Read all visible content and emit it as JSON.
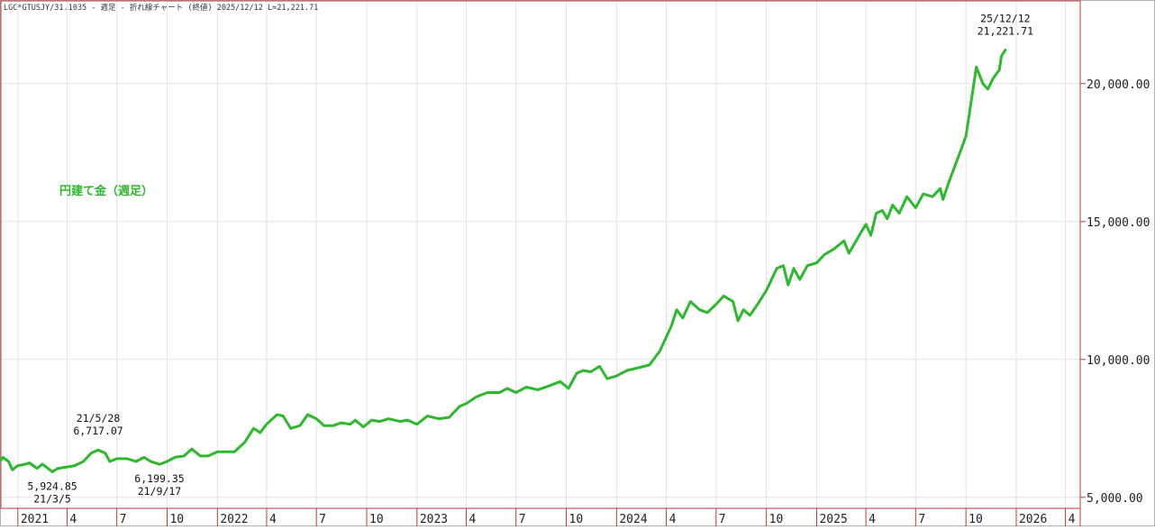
{
  "header": {
    "text": "LGC*GTUSJY/31.1035 - 週足 - 折れ線チャート (終値) 2025/12/12 L=21,221.71"
  },
  "chart_data": {
    "type": "line",
    "title": "円建て金（週足）",
    "color": "#2db82d",
    "ylim": [
      4600,
      23000
    ],
    "xlim": [
      "2020-12-01",
      "2026-04-28"
    ],
    "grid": true,
    "y_ticks": [
      {
        "value": 5000,
        "label": "5,000.00"
      },
      {
        "value": 10000,
        "label": "10,000.00"
      },
      {
        "value": 15000,
        "label": "15,000.00"
      },
      {
        "value": 20000,
        "label": "20,000.00"
      }
    ],
    "x_ticks": [
      {
        "date": "2021-01-01",
        "label": "2021"
      },
      {
        "date": "2021-04-01",
        "label": "4"
      },
      {
        "date": "2021-07-01",
        "label": "7"
      },
      {
        "date": "2021-10-01",
        "label": "10"
      },
      {
        "date": "2022-01-01",
        "label": "2022"
      },
      {
        "date": "2022-04-01",
        "label": "4"
      },
      {
        "date": "2022-07-01",
        "label": "7"
      },
      {
        "date": "2022-10-01",
        "label": "10"
      },
      {
        "date": "2023-01-01",
        "label": "2023"
      },
      {
        "date": "2023-04-01",
        "label": "4"
      },
      {
        "date": "2023-07-01",
        "label": "7"
      },
      {
        "date": "2023-10-01",
        "label": "10"
      },
      {
        "date": "2024-01-01",
        "label": "2024"
      },
      {
        "date": "2024-04-01",
        "label": "4"
      },
      {
        "date": "2024-07-01",
        "label": "7"
      },
      {
        "date": "2024-10-01",
        "label": "10"
      },
      {
        "date": "2025-01-01",
        "label": "2025"
      },
      {
        "date": "2025-04-01",
        "label": "4"
      },
      {
        "date": "2025-07-01",
        "label": "7"
      },
      {
        "date": "2025-10-01",
        "label": "10"
      },
      {
        "date": "2026-01-01",
        "label": "2026"
      },
      {
        "date": "2026-04-01",
        "label": "4"
      }
    ],
    "series": [
      {
        "points": [
          [
            "2020-12-01",
            6350
          ],
          [
            "2020-12-05",
            6450
          ],
          [
            "2020-12-15",
            6300
          ],
          [
            "2020-12-22",
            6000
          ],
          [
            "2021-01-01",
            6150
          ],
          [
            "2021-01-15",
            6200
          ],
          [
            "2021-01-22",
            6250
          ],
          [
            "2021-02-05",
            6050
          ],
          [
            "2021-02-15",
            6200
          ],
          [
            "2021-02-25",
            6050
          ],
          [
            "2021-03-05",
            5925
          ],
          [
            "2021-03-15",
            6050
          ],
          [
            "2021-04-01",
            6100
          ],
          [
            "2021-04-15",
            6150
          ],
          [
            "2021-05-01",
            6300
          ],
          [
            "2021-05-15",
            6600
          ],
          [
            "2021-05-28",
            6717
          ],
          [
            "2021-06-10",
            6600
          ],
          [
            "2021-06-18",
            6300
          ],
          [
            "2021-07-01",
            6400
          ],
          [
            "2021-07-20",
            6400
          ],
          [
            "2021-08-05",
            6300
          ],
          [
            "2021-08-20",
            6450
          ],
          [
            "2021-09-01",
            6300
          ],
          [
            "2021-09-17",
            6199
          ],
          [
            "2021-10-01",
            6300
          ],
          [
            "2021-10-15",
            6450
          ],
          [
            "2021-11-01",
            6500
          ],
          [
            "2021-11-15",
            6750
          ],
          [
            "2021-12-01",
            6500
          ],
          [
            "2021-12-15",
            6500
          ],
          [
            "2022-01-01",
            6650
          ],
          [
            "2022-02-01",
            6650
          ],
          [
            "2022-02-20",
            7000
          ],
          [
            "2022-03-08",
            7500
          ],
          [
            "2022-03-20",
            7350
          ],
          [
            "2022-04-01",
            7650
          ],
          [
            "2022-04-20",
            8000
          ],
          [
            "2022-05-01",
            7950
          ],
          [
            "2022-05-15",
            7500
          ],
          [
            "2022-06-01",
            7600
          ],
          [
            "2022-06-15",
            8000
          ],
          [
            "2022-07-01",
            7850
          ],
          [
            "2022-07-15",
            7600
          ],
          [
            "2022-08-01",
            7600
          ],
          [
            "2022-08-15",
            7700
          ],
          [
            "2022-09-01",
            7650
          ],
          [
            "2022-09-10",
            7800
          ],
          [
            "2022-09-25",
            7550
          ],
          [
            "2022-10-10",
            7800
          ],
          [
            "2022-10-25",
            7750
          ],
          [
            "2022-11-10",
            7850
          ],
          [
            "2022-12-01",
            7750
          ],
          [
            "2022-12-15",
            7800
          ],
          [
            "2023-01-01",
            7650
          ],
          [
            "2023-01-20",
            7950
          ],
          [
            "2023-02-10",
            7850
          ],
          [
            "2023-03-01",
            7900
          ],
          [
            "2023-03-20",
            8300
          ],
          [
            "2023-04-01",
            8400
          ],
          [
            "2023-04-20",
            8650
          ],
          [
            "2023-05-10",
            8800
          ],
          [
            "2023-06-01",
            8800
          ],
          [
            "2023-06-15",
            8950
          ],
          [
            "2023-07-01",
            8800
          ],
          [
            "2023-07-20",
            9000
          ],
          [
            "2023-08-10",
            8900
          ],
          [
            "2023-09-01",
            9050
          ],
          [
            "2023-09-20",
            9200
          ],
          [
            "2023-10-05",
            8950
          ],
          [
            "2023-10-20",
            9500
          ],
          [
            "2023-11-01",
            9600
          ],
          [
            "2023-11-15",
            9550
          ],
          [
            "2023-12-01",
            9750
          ],
          [
            "2023-12-15",
            9300
          ],
          [
            "2024-01-01",
            9400
          ],
          [
            "2024-01-20",
            9600
          ],
          [
            "2024-02-10",
            9700
          ],
          [
            "2024-03-01",
            9800
          ],
          [
            "2024-03-20",
            10300
          ],
          [
            "2024-04-10",
            11200
          ],
          [
            "2024-04-20",
            11800
          ],
          [
            "2024-05-01",
            11500
          ],
          [
            "2024-05-15",
            12100
          ],
          [
            "2024-06-01",
            11800
          ],
          [
            "2024-06-15",
            11700
          ],
          [
            "2024-07-01",
            12000
          ],
          [
            "2024-07-15",
            12300
          ],
          [
            "2024-08-01",
            12100
          ],
          [
            "2024-08-10",
            11400
          ],
          [
            "2024-08-20",
            11800
          ],
          [
            "2024-09-01",
            11600
          ],
          [
            "2024-09-15",
            12000
          ],
          [
            "2024-10-01",
            12500
          ],
          [
            "2024-10-20",
            13300
          ],
          [
            "2024-11-01",
            13400
          ],
          [
            "2024-11-10",
            12700
          ],
          [
            "2024-11-20",
            13300
          ],
          [
            "2024-12-01",
            12900
          ],
          [
            "2024-12-15",
            13400
          ],
          [
            "2025-01-01",
            13500
          ],
          [
            "2025-01-15",
            13800
          ],
          [
            "2025-02-01",
            14000
          ],
          [
            "2025-02-20",
            14300
          ],
          [
            "2025-03-01",
            13850
          ],
          [
            "2025-03-20",
            14500
          ],
          [
            "2025-04-01",
            14900
          ],
          [
            "2025-04-10",
            14500
          ],
          [
            "2025-04-20",
            15300
          ],
          [
            "2025-05-01",
            15400
          ],
          [
            "2025-05-10",
            15100
          ],
          [
            "2025-05-20",
            15600
          ],
          [
            "2025-06-01",
            15300
          ],
          [
            "2025-06-15",
            15900
          ],
          [
            "2025-07-01",
            15500
          ],
          [
            "2025-07-15",
            16000
          ],
          [
            "2025-08-01",
            15900
          ],
          [
            "2025-08-15",
            16200
          ],
          [
            "2025-08-20",
            15800
          ],
          [
            "2025-09-01",
            16500
          ],
          [
            "2025-09-20",
            17500
          ],
          [
            "2025-10-01",
            18100
          ],
          [
            "2025-10-20",
            20600
          ],
          [
            "2025-11-01",
            20000
          ],
          [
            "2025-11-10",
            19800
          ],
          [
            "2025-11-20",
            20200
          ],
          [
            "2025-12-01",
            20500
          ],
          [
            "2025-12-05",
            21000
          ],
          [
            "2025-12-12",
            21222
          ]
        ]
      }
    ],
    "annotations": [
      {
        "date": "2021-03-05",
        "value_label": "5,924.85",
        "date_label": "21/3/5",
        "position": "below"
      },
      {
        "date": "2021-05-28",
        "value_label": "6,717.07",
        "date_label": "21/5/28",
        "position": "above"
      },
      {
        "date": "2021-09-17",
        "value_label": "6,199.35",
        "date_label": "21/9/17",
        "position": "below"
      },
      {
        "date": "2025-12-12",
        "value_label": "21,221.71",
        "date_label": "25/12/12",
        "position": "above"
      }
    ]
  }
}
